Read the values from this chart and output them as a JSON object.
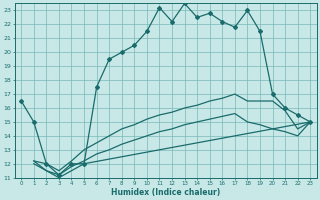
{
  "xlabel": "Humidex (Indice chaleur)",
  "bg_color": "#c8e8e8",
  "grid_color": "#7ab8b8",
  "line_color": "#1a6b6b",
  "xlim": [
    -0.5,
    23.5
  ],
  "ylim": [
    11,
    23.5
  ],
  "xticks": [
    0,
    1,
    2,
    3,
    4,
    5,
    6,
    7,
    8,
    9,
    10,
    11,
    12,
    13,
    14,
    15,
    16,
    17,
    18,
    19,
    20,
    21,
    22,
    23
  ],
  "yticks": [
    11,
    12,
    13,
    14,
    15,
    16,
    17,
    18,
    19,
    20,
    21,
    22,
    23
  ],
  "main_x": [
    0,
    1,
    2,
    3,
    4,
    5,
    6,
    7,
    8,
    9,
    10,
    11,
    12,
    13,
    14,
    15,
    16,
    17,
    18,
    19,
    20,
    21,
    22,
    23
  ],
  "main_y": [
    16.5,
    15,
    12,
    11.2,
    12,
    12,
    17.5,
    19.5,
    20.0,
    20.5,
    21.5,
    23.2,
    22.2,
    23.5,
    22.5,
    22.8,
    22.2,
    21.8,
    23.0,
    21.5,
    17,
    16.0,
    15.5,
    15.0
  ],
  "line2_x": [
    1,
    2,
    3,
    4,
    5,
    6,
    7,
    8,
    9,
    10,
    11,
    12,
    13,
    14,
    15,
    16,
    17,
    18,
    19,
    20,
    21,
    22,
    23
  ],
  "line2_y": [
    12.2,
    12.0,
    11.5,
    12.2,
    13.0,
    13.5,
    14.0,
    14.5,
    14.8,
    15.2,
    15.5,
    15.7,
    16.0,
    16.2,
    16.5,
    16.7,
    17.0,
    16.5,
    16.5,
    16.5,
    15.8,
    14.5,
    15.0
  ],
  "line3_x": [
    1,
    2,
    3,
    4,
    5,
    6,
    7,
    8,
    9,
    10,
    11,
    12,
    13,
    14,
    15,
    16,
    17,
    18,
    19,
    20,
    21,
    22,
    23
  ],
  "line3_y": [
    12.0,
    11.5,
    11.2,
    11.8,
    12.2,
    12.7,
    13.0,
    13.4,
    13.7,
    14.0,
    14.3,
    14.5,
    14.8,
    15.0,
    15.2,
    15.4,
    15.6,
    15.0,
    14.8,
    14.5,
    14.3,
    14.0,
    15.0
  ],
  "line4_x": [
    1,
    2,
    3,
    4,
    5,
    23
  ],
  "line4_y": [
    12.2,
    11.5,
    11.0,
    11.5,
    12.0,
    15.0
  ]
}
